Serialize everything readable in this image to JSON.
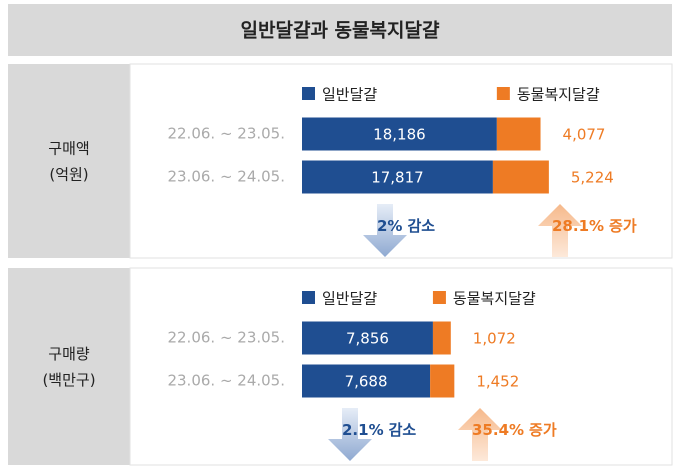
{
  "title": "일반달걀과 동물복지달걀",
  "chart_data": [
    {
      "type": "bar",
      "orientation": "horizontal",
      "stacked": true,
      "label": [
        "구매액",
        "(억원)"
      ],
      "categories": [
        "22.06. ~ 23.05.",
        "23.06. ~ 24.05."
      ],
      "series": [
        {
          "name": "일반달걀",
          "color": "#1f4e91",
          "values": [
            18186,
            17817
          ],
          "value_labels": [
            "18,186",
            "17,817"
          ]
        },
        {
          "name": "동물복지달걀",
          "color": "#ee7b24",
          "values": [
            4077,
            5224
          ],
          "value_labels": [
            "4,077",
            "5,224"
          ]
        }
      ],
      "xlim": [
        0,
        28000
      ],
      "annotations": [
        {
          "change": "2%",
          "text": "감소",
          "direction": "down"
        },
        {
          "change": "28.1%",
          "text": "증가",
          "direction": "up"
        }
      ]
    },
    {
      "type": "bar",
      "orientation": "horizontal",
      "stacked": true,
      "label": [
        "구매량",
        "(백만구)"
      ],
      "categories": [
        "22.06. ~ 23.05.",
        "23.06. ~ 24.05."
      ],
      "series": [
        {
          "name": "일반달걀",
          "color": "#1f4e91",
          "values": [
            7856,
            7688
          ],
          "value_labels": [
            "7,856",
            "7,688"
          ]
        },
        {
          "name": "동물복지달걀",
          "color": "#ee7b24",
          "values": [
            1072,
            1452
          ],
          "value_labels": [
            "1,072",
            "1,452"
          ]
        }
      ],
      "xlim": [
        0,
        18000
      ],
      "annotations": [
        {
          "change": "2.1%",
          "text": "감소",
          "direction": "down"
        },
        {
          "change": "35.4%",
          "text": "증가",
          "direction": "up"
        }
      ]
    }
  ]
}
